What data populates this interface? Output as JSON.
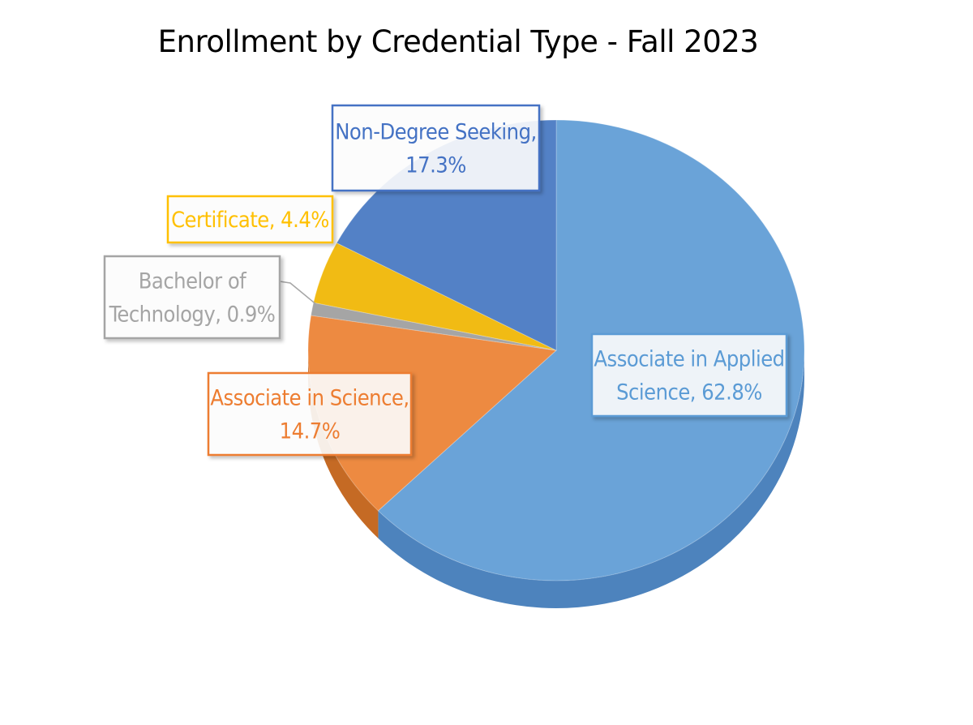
{
  "chart_data": {
    "type": "pie",
    "title": "Enrollment by Credential Type - Fall 2023",
    "slices": [
      {
        "label": "Associate in Applied Science",
        "value": 62.8,
        "label_text": "Associate in Applied Science, 62.8%",
        "color": "#6aa3d8",
        "side_color": "#4d83bd",
        "text_color": "#5b9bd5"
      },
      {
        "label": "Associate in Science",
        "value": 14.7,
        "label_text": "Associate in Science, 14.7%",
        "color": "#ed8a41",
        "side_color": "#c56a24",
        "text_color": "#ed7d31"
      },
      {
        "label": "Bachelor of Technology",
        "value": 0.9,
        "label_text": "Bachelor of Technology, 0.9%",
        "color": "#a5a5a5",
        "side_color": "#868686",
        "text_color": "#a5a5a5"
      },
      {
        "label": "Certificate",
        "value": 4.4,
        "label_text": "Certificate, 4.4%",
        "color": "#f1bb14",
        "side_color": "#c9980a",
        "text_color": "#ffc000"
      },
      {
        "label": "Non-Degree Seeking",
        "value": 17.3,
        "label_text": "Non-Degree Seeking, 17.3%",
        "color": "#5381c6",
        "side_color": "#3f66a6",
        "text_color": "#4472c4"
      }
    ],
    "labels": [
      {
        "lines": [
          "Associate in Applied",
          "Science, 62.8%"
        ]
      },
      {
        "lines": [
          "Associate in Science,",
          "14.7%"
        ]
      },
      {
        "lines": [
          "Bachelor of",
          "Technology, 0.9%"
        ]
      },
      {
        "lines": [
          "Certificate, 4.4%"
        ]
      },
      {
        "lines": [
          "Non-Degree Seeking,",
          "17.3%"
        ]
      }
    ]
  }
}
